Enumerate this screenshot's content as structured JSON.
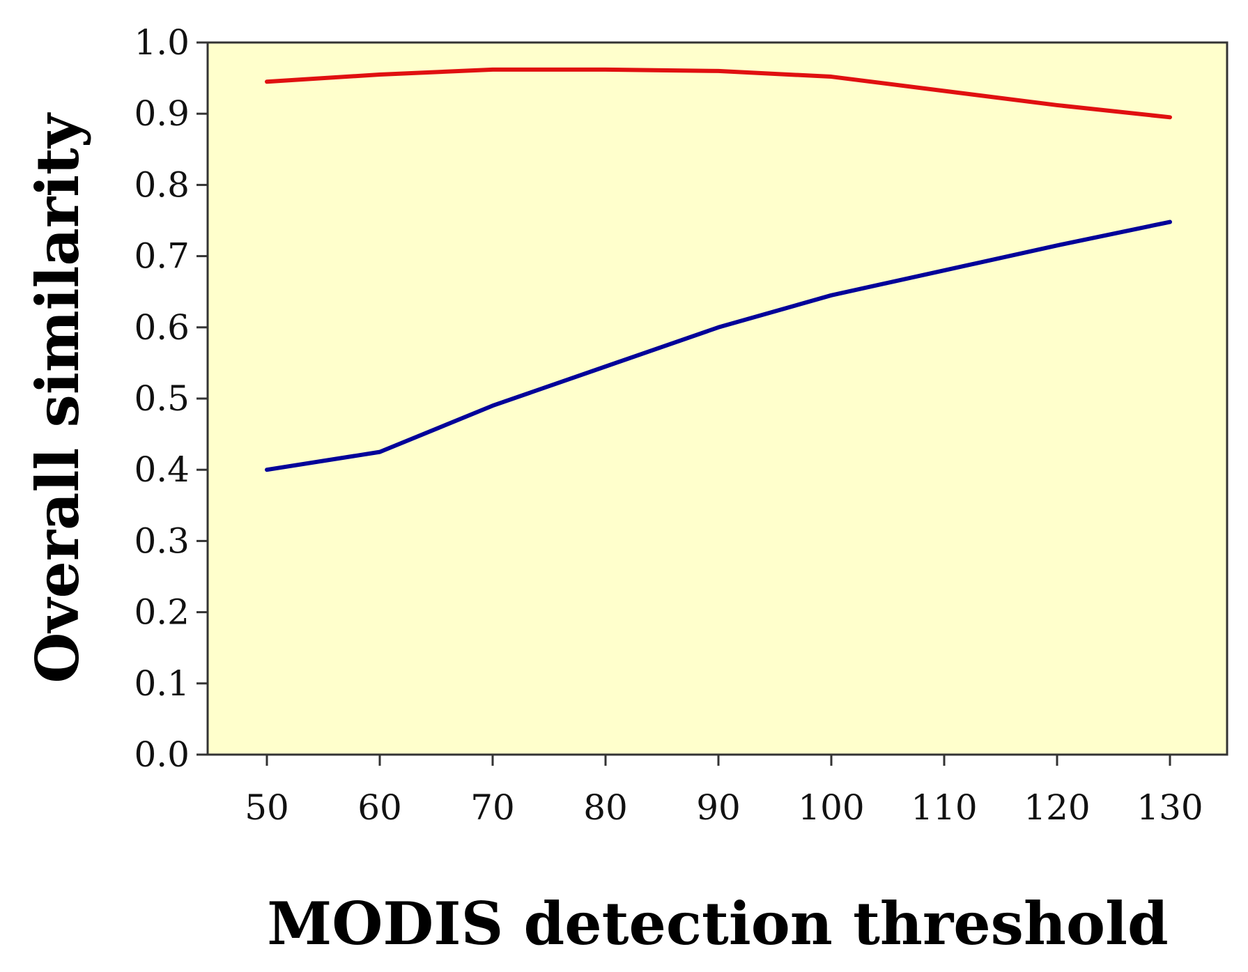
{
  "chart_data": {
    "type": "line",
    "title": "",
    "xlabel": "MODIS detection threshold",
    "ylabel": "Overall similarity",
    "x": [
      50,
      60,
      70,
      80,
      90,
      100,
      110,
      120,
      130
    ],
    "x_tick_labels": [
      "50",
      "60",
      "70",
      "80",
      "90",
      "100",
      "110",
      "120",
      "130"
    ],
    "y_tick_labels": [
      "0.0",
      "0.1",
      "0.2",
      "0.3",
      "0.4",
      "0.5",
      "0.6",
      "0.7",
      "0.8",
      "0.9",
      "1.0"
    ],
    "xlim": [
      45,
      135
    ],
    "ylim": [
      0,
      1.0
    ],
    "grid": false,
    "plot_background": "#FFFFCC",
    "series": [
      {
        "name": "red-series",
        "color": "#E01010",
        "values": [
          0.945,
          0.955,
          0.962,
          0.962,
          0.96,
          0.952,
          0.932,
          0.912,
          0.895
        ]
      },
      {
        "name": "blue-series",
        "color": "#000099",
        "values": [
          0.4,
          0.425,
          0.49,
          0.545,
          0.6,
          0.645,
          0.68,
          0.715,
          0.748
        ]
      }
    ]
  }
}
